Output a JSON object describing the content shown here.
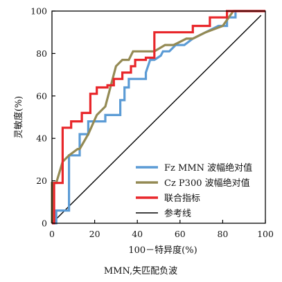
{
  "chart_data": {
    "type": "line",
    "xlabel": "100－特异度(%)",
    "ylabel": "灵敏度(%)",
    "caption": "MMN,失匹配负波",
    "xlim": [
      0,
      100
    ],
    "ylim": [
      0,
      100
    ],
    "x_ticks": [
      0,
      20,
      40,
      60,
      80,
      100
    ],
    "y_ticks": [
      0,
      20,
      40,
      60,
      80,
      100
    ],
    "grid": false,
    "legend_position": "bottom-right",
    "series": [
      {
        "name": "Fz MMN 波幅绝对值",
        "color": "#5b9bd5",
        "x": [
          0,
          2,
          2,
          8,
          8,
          13,
          13,
          17,
          17,
          25,
          25,
          32,
          32,
          34,
          34,
          36,
          36,
          40,
          40,
          44,
          44,
          46,
          48,
          48,
          51,
          52,
          55,
          58,
          62,
          66,
          72,
          78,
          82,
          82,
          86,
          86,
          100
        ],
        "y": [
          0,
          0,
          6,
          6,
          32,
          32,
          42,
          42,
          48,
          48,
          51,
          51,
          58,
          58,
          64,
          64,
          68,
          68,
          68,
          68,
          71,
          77,
          77,
          77,
          79,
          81,
          81,
          84,
          84,
          87,
          90,
          93,
          93,
          97,
          97,
          100,
          100
        ]
      },
      {
        "name": "Cz P300 波幅绝对值",
        "color": "#948a54",
        "x": [
          0,
          0,
          2,
          2,
          5,
          5,
          8,
          8,
          12,
          12,
          13,
          13,
          17,
          17,
          21,
          21,
          25,
          25,
          30,
          30,
          33,
          33,
          36,
          36,
          38,
          38,
          40,
          40,
          48,
          48,
          53,
          53,
          57,
          57,
          63,
          63,
          66,
          66,
          72,
          72,
          80,
          80,
          85,
          85,
          100
        ],
        "y": [
          0,
          19,
          19,
          19,
          29,
          29,
          32,
          32,
          35,
          35,
          35,
          35,
          42,
          42,
          51,
          51,
          55,
          55,
          74,
          74,
          77,
          77,
          77,
          77,
          81,
          81,
          81,
          81,
          81,
          81,
          84,
          84,
          84,
          84,
          87,
          87,
          87,
          87,
          90,
          90,
          93,
          93,
          100,
          100,
          100
        ]
      },
      {
        "name": "联合指标",
        "color": "#e8262a",
        "x": [
          0,
          1,
          1,
          5,
          5,
          9,
          9,
          14,
          14,
          18,
          18,
          21,
          21,
          26,
          26,
          29,
          29,
          33,
          33,
          37,
          37,
          39,
          39,
          44,
          44,
          48,
          48,
          66,
          66,
          74,
          74,
          82,
          82,
          90,
          90,
          100
        ],
        "y": [
          0,
          0,
          19,
          19,
          45,
          45,
          48,
          48,
          52,
          52,
          61,
          61,
          64,
          64,
          65,
          65,
          68,
          68,
          71,
          71,
          74,
          74,
          77,
          77,
          78,
          78,
          90,
          90,
          93,
          93,
          97,
          97,
          100,
          100,
          100,
          100
        ]
      },
      {
        "name": "参考线",
        "color": "#000000",
        "x": [
          0,
          98
        ],
        "y": [
          0,
          98
        ]
      }
    ]
  }
}
